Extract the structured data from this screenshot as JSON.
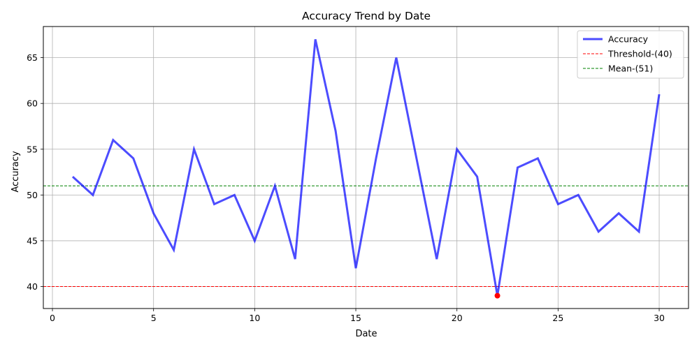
{
  "chart_data": {
    "type": "line",
    "title": "Accuracy Trend by Date",
    "xlabel": "Date",
    "ylabel": "Accuracy",
    "xlim": [
      -0.45,
      31.45
    ],
    "ylim": [
      37.6,
      68.4
    ],
    "xticks": [
      0,
      5,
      10,
      15,
      20,
      25,
      30
    ],
    "yticks": [
      40,
      45,
      50,
      55,
      60,
      65
    ],
    "grid": true,
    "legend_position": "top-right",
    "series": [
      {
        "name": "Accuracy",
        "color": "#0000ff",
        "x": [
          1,
          2,
          3,
          4,
          5,
          6,
          7,
          8,
          9,
          10,
          11,
          12,
          13,
          14,
          15,
          16,
          17,
          18,
          19,
          20,
          21,
          22,
          23,
          24,
          25,
          26,
          27,
          28,
          29,
          30
        ],
        "values": [
          52,
          50,
          56,
          54,
          48,
          44,
          55,
          49,
          50,
          45,
          51,
          43,
          67,
          57,
          42,
          54,
          65,
          54,
          43,
          55,
          52,
          39,
          53,
          54,
          49,
          50,
          46,
          48,
          46,
          61
        ]
      }
    ],
    "reference_lines": [
      {
        "name": "Threshold-(40)",
        "value": 40,
        "color": "#ff0000",
        "style": "dashed"
      },
      {
        "name": "Mean-(51)",
        "value": 51,
        "color": "#008000",
        "style": "dashed"
      }
    ],
    "highlighted_points": [
      {
        "x": 22,
        "y": 39,
        "color": "#ff0000"
      }
    ]
  }
}
